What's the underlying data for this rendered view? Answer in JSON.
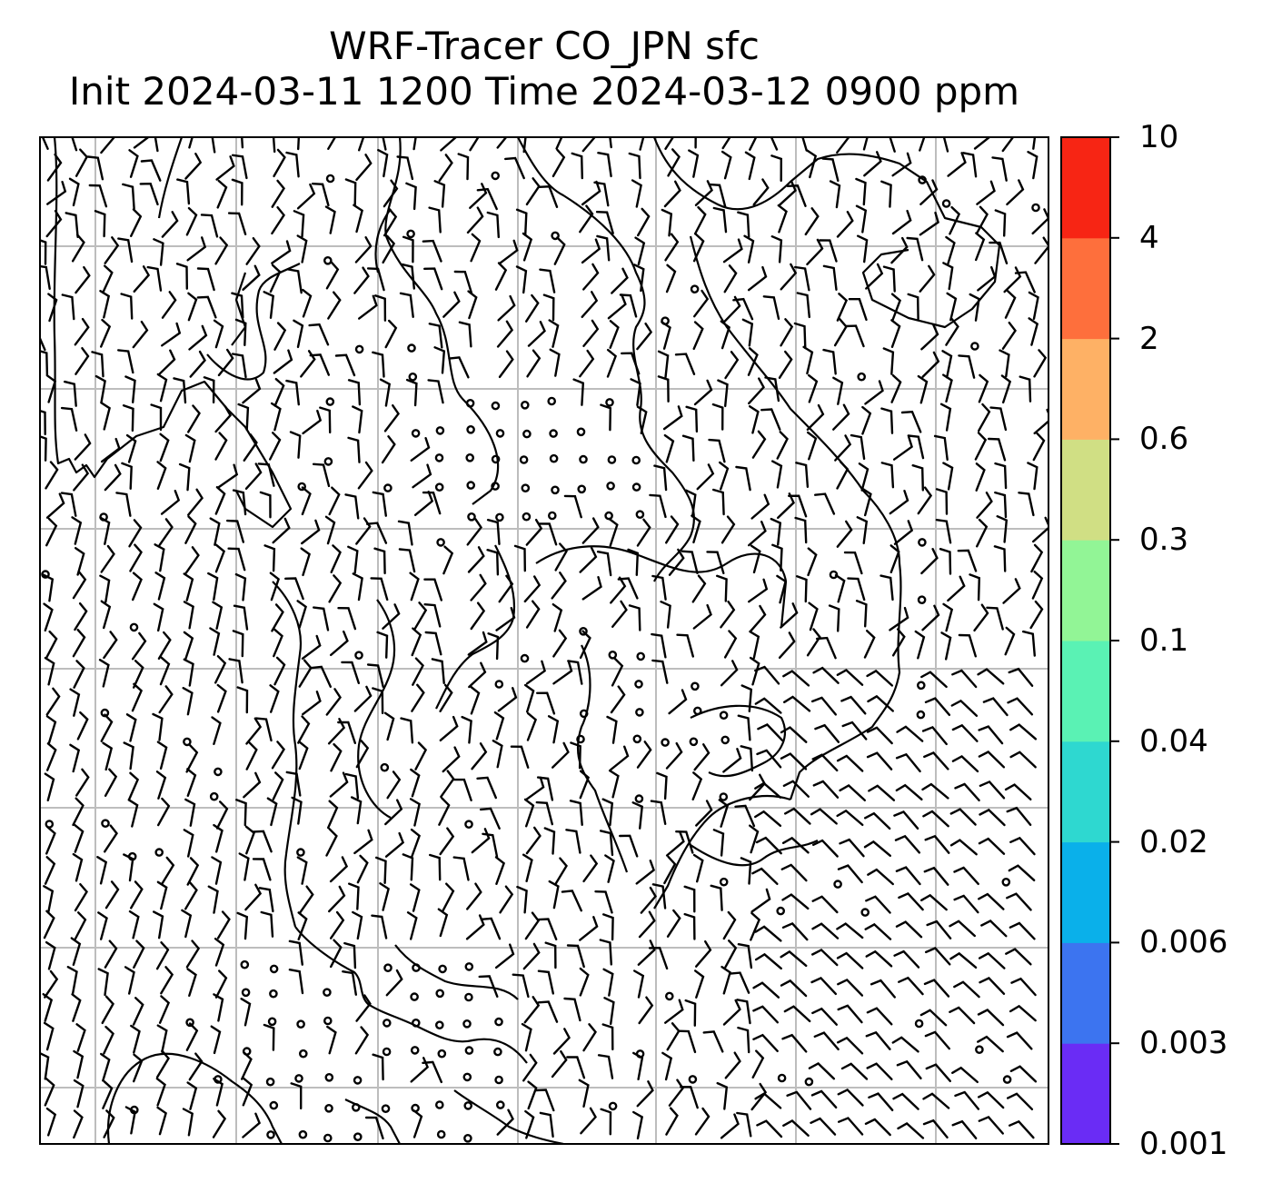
{
  "title": {
    "line1": "WRF-Tracer CO_JPN sfc",
    "line2": "Init 2024-03-11 1200 Time 2024-03-12 0900 ppm"
  },
  "map": {
    "projection_note": "",
    "background": "#ffffff",
    "gridline_color": "#bdbdbd",
    "coastline_color": "#000000",
    "barb_color": "#000000",
    "features": [
      "coastlines",
      "gridlines",
      "wind-barbs",
      "calm-circles"
    ]
  },
  "colorbar": {
    "levels": [
      "0.001",
      "0.003",
      "0.006",
      "0.02",
      "0.04",
      "0.1",
      "0.3",
      "0.6",
      "2",
      "4",
      "10"
    ],
    "colors": [
      "#6a2cf5",
      "#3c74f0",
      "#0ab0ea",
      "#2ed8d0",
      "#5af2b4",
      "#92f596",
      "#d0df84",
      "#feb165",
      "#fe6f3c",
      "#f72514"
    ]
  }
}
